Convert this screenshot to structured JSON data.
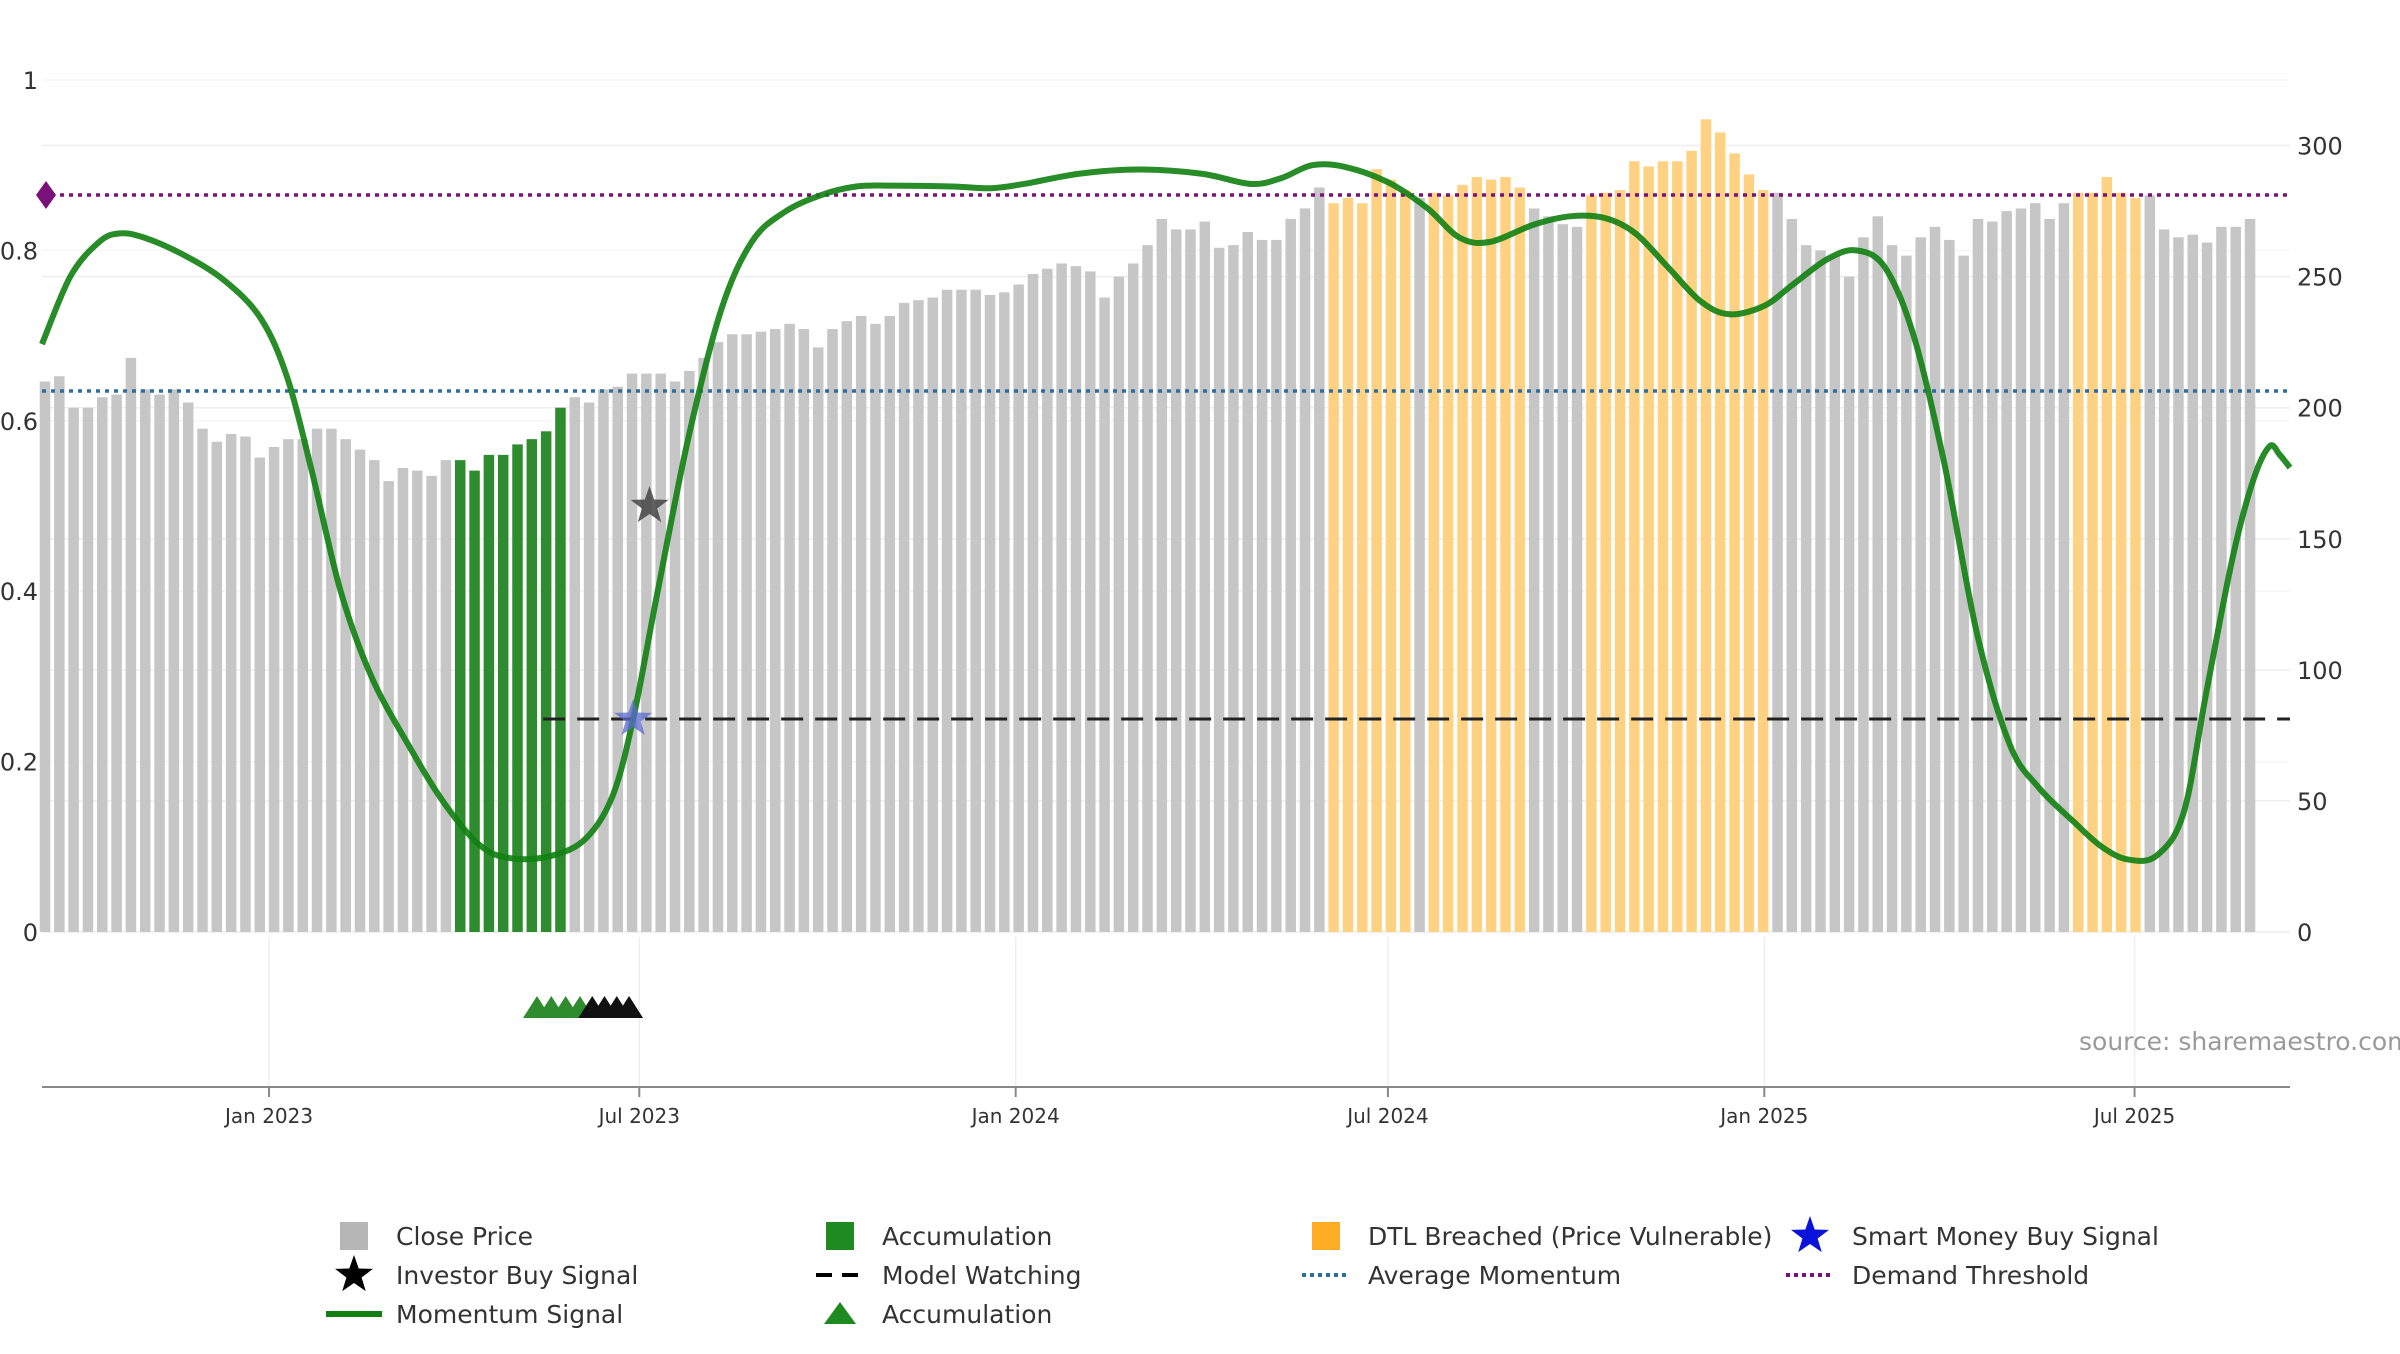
{
  "chart_data": {
    "type": "bar",
    "source": "source: sharemaestro.com",
    "left_axis": {
      "ticks": [
        0,
        0.2,
        0.4,
        0.6,
        0.8,
        1
      ],
      "tick_labels": [
        "0",
        "0.2",
        "0.4",
        "0.6",
        "0.8",
        "1"
      ],
      "range": [
        0,
        1
      ]
    },
    "right_axis": {
      "ticks": [
        0,
        50,
        100,
        150,
        200,
        250,
        300
      ],
      "tick_labels": [
        "0",
        "50",
        "100",
        "150",
        "200",
        "250",
        "300"
      ],
      "range": [
        0,
        325
      ]
    },
    "x_axis": {
      "start": "2022-09-12",
      "end": "2025-09-15",
      "ticks": [
        {
          "date": "2023-01-01",
          "label": "Jan 2023"
        },
        {
          "date": "2023-07-01",
          "label": "Jul 2023"
        },
        {
          "date": "2024-01-01",
          "label": "Jan 2024"
        },
        {
          "date": "2024-07-01",
          "label": "Jul 2024"
        },
        {
          "date": "2025-01-01",
          "label": "Jan 2025"
        },
        {
          "date": "2025-07-01",
          "label": "Jul 2025"
        }
      ]
    },
    "close_price": {
      "name": "Close Price",
      "first_week": "2022-09-12",
      "values": [
        210,
        212,
        200,
        200,
        204,
        205,
        219,
        207,
        205,
        207,
        202,
        192,
        187,
        190,
        189,
        181,
        185,
        188,
        188,
        192,
        192,
        188,
        184,
        180,
        172,
        177,
        176,
        174,
        180,
        180,
        176,
        182,
        182,
        186,
        188,
        191,
        200,
        204,
        202,
        207,
        208,
        213,
        213,
        213,
        210,
        214,
        219,
        225,
        228,
        228,
        229,
        230,
        232,
        230,
        223,
        230,
        233,
        235,
        232,
        235,
        240,
        241,
        242,
        245,
        245,
        245,
        243,
        244,
        247,
        251,
        253,
        255,
        254,
        252,
        242,
        250,
        255,
        262,
        272,
        268,
        268,
        271,
        261,
        262,
        267,
        264,
        264,
        272,
        276,
        284,
        278,
        280,
        278,
        291,
        287,
        283,
        280,
        282,
        281,
        285,
        288,
        287,
        288,
        284,
        276,
        273,
        270,
        269,
        281,
        282,
        283,
        294,
        292,
        294,
        294,
        298,
        310,
        305,
        297,
        289,
        283,
        282,
        272,
        262,
        260,
        258,
        250,
        265,
        273,
        262,
        258,
        265,
        269,
        264,
        258,
        272,
        271,
        275,
        276,
        278,
        272,
        278,
        282,
        282,
        288,
        282,
        280,
        281,
        268,
        265,
        266,
        263,
        269,
        269,
        272
      ],
      "accumulation_weeks": [
        29,
        36
      ],
      "dtl_breached_ranges": [
        [
          90,
          95
        ],
        [
          97,
          103
        ],
        [
          108,
          120
        ],
        [
          142,
          146
        ]
      ]
    },
    "momentum_signal": {
      "name": "Momentum Signal",
      "points": [
        [
          "2022-09-12",
          0.69
        ],
        [
          "2022-09-26",
          0.77
        ],
        [
          "2022-10-10",
          0.81
        ],
        [
          "2022-10-20",
          0.82
        ],
        [
          "2022-11-01",
          0.815
        ],
        [
          "2022-11-20",
          0.795
        ],
        [
          "2022-12-10",
          0.765
        ],
        [
          "2022-12-28",
          0.72
        ],
        [
          "2023-01-10",
          0.65
        ],
        [
          "2023-01-22",
          0.54
        ],
        [
          "2023-02-05",
          0.4
        ],
        [
          "2023-02-20",
          0.3
        ],
        [
          "2023-03-10",
          0.22
        ],
        [
          "2023-03-28",
          0.15
        ],
        [
          "2023-04-15",
          0.1
        ],
        [
          "2023-05-01",
          0.086
        ],
        [
          "2023-05-20",
          0.09
        ],
        [
          "2023-06-05",
          0.11
        ],
        [
          "2023-06-18",
          0.16
        ],
        [
          "2023-06-28",
          0.25
        ],
        [
          "2023-07-10",
          0.4
        ],
        [
          "2023-07-25",
          0.58
        ],
        [
          "2023-08-10",
          0.73
        ],
        [
          "2023-08-25",
          0.81
        ],
        [
          "2023-09-10",
          0.845
        ],
        [
          "2023-09-28",
          0.865
        ],
        [
          "2023-10-15",
          0.875
        ],
        [
          "2023-11-01",
          0.876
        ],
        [
          "2023-12-01",
          0.875
        ],
        [
          "2023-12-20",
          0.873
        ],
        [
          "2024-01-05",
          0.878
        ],
        [
          "2024-02-01",
          0.89
        ],
        [
          "2024-03-01",
          0.895
        ],
        [
          "2024-04-01",
          0.89
        ],
        [
          "2024-04-25",
          0.878
        ],
        [
          "2024-05-10",
          0.885
        ],
        [
          "2024-05-25",
          0.9
        ],
        [
          "2024-06-10",
          0.898
        ],
        [
          "2024-07-01",
          0.88
        ],
        [
          "2024-07-20",
          0.85
        ],
        [
          "2024-08-05",
          0.815
        ],
        [
          "2024-08-20",
          0.81
        ],
        [
          "2024-09-10",
          0.83
        ],
        [
          "2024-09-28",
          0.84
        ],
        [
          "2024-10-15",
          0.838
        ],
        [
          "2024-10-30",
          0.82
        ],
        [
          "2024-11-15",
          0.78
        ],
        [
          "2024-12-01",
          0.74
        ],
        [
          "2024-12-15",
          0.725
        ],
        [
          "2025-01-01",
          0.735
        ],
        [
          "2025-01-15",
          0.76
        ],
        [
          "2025-02-01",
          0.79
        ],
        [
          "2025-02-15",
          0.8
        ],
        [
          "2025-03-01",
          0.78
        ],
        [
          "2025-03-15",
          0.7
        ],
        [
          "2025-03-30",
          0.55
        ],
        [
          "2025-04-15",
          0.35
        ],
        [
          "2025-05-01",
          0.22
        ],
        [
          "2025-05-15",
          0.17
        ],
        [
          "2025-06-01",
          0.13
        ],
        [
          "2025-06-15",
          0.1
        ],
        [
          "2025-06-28",
          0.085
        ],
        [
          "2025-07-12",
          0.09
        ],
        [
          "2025-07-25",
          0.14
        ],
        [
          "2025-08-05",
          0.28
        ],
        [
          "2025-08-18",
          0.44
        ],
        [
          "2025-08-28",
          0.53
        ],
        [
          "2025-09-05",
          0.57
        ],
        [
          "2025-09-10",
          0.56
        ],
        [
          "2025-09-15",
          0.545
        ]
      ]
    },
    "average_momentum": {
      "name": "Average Momentum",
      "value": 0.635
    },
    "demand_threshold": {
      "name": "Demand Threshold",
      "value": 0.865
    },
    "model_watching": {
      "name": "Model Watching",
      "value": 0.25,
      "from": "2023-05-15",
      "to": "2025-09-15"
    },
    "smart_money_buy_signal": {
      "name": "Smart Money Buy Signal",
      "date": "2023-06-28",
      "value": 0.25
    },
    "investor_buy_signal": {
      "name": "Investor Buy Signal",
      "date": "2023-07-06",
      "value": 0.5
    },
    "accumulation_markers": {
      "name": "Accumulation",
      "green": [
        "2023-05-12",
        "2023-05-19",
        "2023-05-26",
        "2023-06-02"
      ],
      "black": [
        "2023-06-08",
        "2023-06-14",
        "2023-06-20",
        "2023-06-26"
      ]
    },
    "legend": [
      {
        "label": "Close Price",
        "symbol": "square",
        "color": "#b5b5b5"
      },
      {
        "label": "Accumulation",
        "symbol": "square",
        "color": "#1f8a1f"
      },
      {
        "label": "DTL Breached (Price Vulnerable)",
        "symbol": "square",
        "color": "#ffad24"
      },
      {
        "label": "Smart Money Buy Signal",
        "symbol": "star",
        "color": "#0b12d9"
      },
      {
        "label": "Investor Buy Signal",
        "symbol": "star",
        "color": "#000000"
      },
      {
        "label": "Model Watching",
        "symbol": "dash",
        "color": "#000000"
      },
      {
        "label": "Average Momentum",
        "symbol": "dot",
        "color": "#2e6e9e"
      },
      {
        "label": "Demand Threshold",
        "symbol": "dot",
        "color": "#7a117a"
      },
      {
        "label": "Momentum Signal",
        "symbol": "line",
        "color": "#118011"
      },
      {
        "label": "Accumulation",
        "symbol": "triangle",
        "color": "#1f8a1f"
      }
    ],
    "colors": {
      "close_price": "#c6c6c6",
      "accumulation": "#2e8b2e",
      "dtl_breached": "#ffd283",
      "momentum": "#118011",
      "average_momentum": "#2e6e9e",
      "demand_threshold": "#7a117a",
      "model_watching": "#222222"
    }
  }
}
